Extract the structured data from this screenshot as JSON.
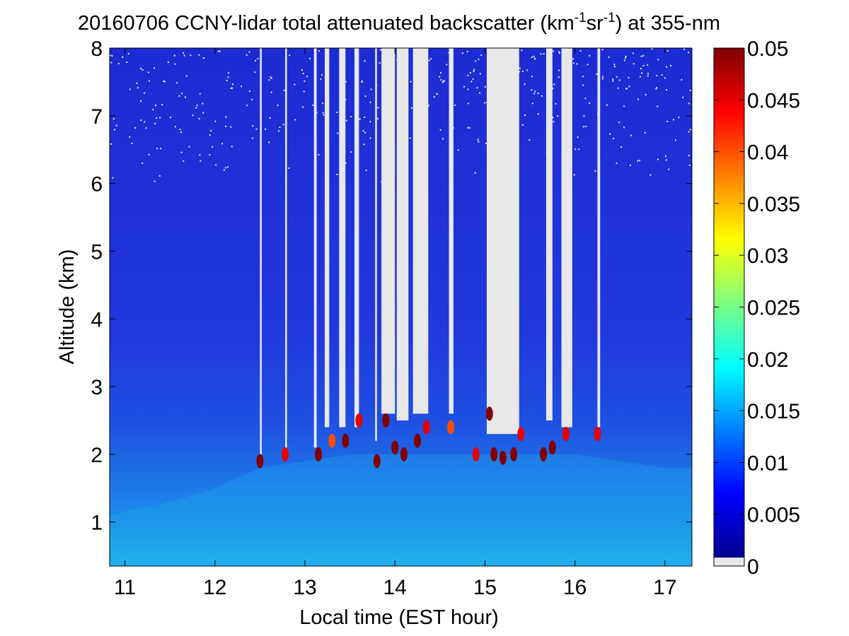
{
  "chart_data": {
    "type": "heatmap",
    "title_parts": {
      "prefix": "20160706 CCNY-lidar total attenuated backscatter (km",
      "exp1": "-1",
      "mid": "sr",
      "exp2": "-1",
      "suffix": ") at 355-nm"
    },
    "xlabel": "Local time (EST hour)",
    "ylabel": "Altitude (km)",
    "xlim": [
      10.83,
      17.3
    ],
    "ylim": [
      0.35,
      8
    ],
    "x_ticks": [
      11,
      12,
      13,
      14,
      15,
      16,
      17
    ],
    "y_ticks": [
      1,
      2,
      3,
      4,
      5,
      6,
      7,
      8
    ],
    "colorbar": {
      "min": 0,
      "max": 0.05,
      "ticks": [
        "0",
        "0.005",
        "0.01",
        "0.015",
        "0.02",
        "0.025",
        "0.03",
        "0.035",
        "0.04",
        "0.045",
        "0.05"
      ],
      "colormap": "jet",
      "nodata_color": "#e8e8e8"
    },
    "colors": {
      "background_low": "#2232d8",
      "nodata": "#e8e8e8"
    },
    "boundary_layer_top_km": {
      "x": [
        10.83,
        11.5,
        12.0,
        12.5,
        13.0,
        13.5,
        14.0,
        14.5,
        15.0,
        15.5,
        16.0,
        16.5,
        17.0,
        17.3
      ],
      "y": [
        1.1,
        1.3,
        1.5,
        1.8,
        1.9,
        2.0,
        2.0,
        2.0,
        2.0,
        2.0,
        2.0,
        1.9,
        1.8,
        1.8
      ]
    },
    "no_data_regions": [
      {
        "x": [
          12.5,
          12.52
        ],
        "y_bottom": 2.0
      },
      {
        "x": [
          12.78,
          12.8
        ],
        "y_bottom": 2.0
      },
      {
        "x": [
          13.1,
          13.13
        ],
        "y_bottom": 2.1
      },
      {
        "x": [
          13.22,
          13.27
        ],
        "y_bottom": 2.4
      },
      {
        "x": [
          13.38,
          13.45
        ],
        "y_bottom": 2.4
      },
      {
        "x": [
          13.55,
          13.6
        ],
        "y_bottom": 2.4
      },
      {
        "x": [
          13.78,
          13.8
        ],
        "y_bottom": 2.2
      },
      {
        "x": [
          13.85,
          14.0
        ],
        "y_bottom": 2.6
      },
      {
        "x": [
          14.02,
          14.15
        ],
        "y_bottom": 2.5
      },
      {
        "x": [
          14.2,
          14.37
        ],
        "y_bottom": 2.6
      },
      {
        "x": [
          14.6,
          14.65
        ],
        "y_bottom": 2.6
      },
      {
        "x": [
          15.02,
          15.38
        ],
        "y_bottom": 2.3
      },
      {
        "x": [
          15.68,
          15.75
        ],
        "y_bottom": 2.5
      },
      {
        "x": [
          15.85,
          15.97
        ],
        "y_bottom": 2.4
      },
      {
        "x": [
          16.25,
          16.28
        ],
        "y_bottom": 2.4
      }
    ],
    "cloud_base_features": [
      {
        "x": 12.5,
        "y": 1.9,
        "value": 0.05
      },
      {
        "x": 12.78,
        "y": 2.0,
        "value": 0.045
      },
      {
        "x": 13.15,
        "y": 2.0,
        "value": 0.05
      },
      {
        "x": 13.3,
        "y": 2.2,
        "value": 0.04
      },
      {
        "x": 13.45,
        "y": 2.2,
        "value": 0.05
      },
      {
        "x": 13.6,
        "y": 2.5,
        "value": 0.045
      },
      {
        "x": 13.8,
        "y": 1.9,
        "value": 0.05
      },
      {
        "x": 13.9,
        "y": 2.5,
        "value": 0.05
      },
      {
        "x": 14.0,
        "y": 2.1,
        "value": 0.05
      },
      {
        "x": 14.1,
        "y": 2.0,
        "value": 0.05
      },
      {
        "x": 14.25,
        "y": 2.2,
        "value": 0.05
      },
      {
        "x": 14.35,
        "y": 2.4,
        "value": 0.045
      },
      {
        "x": 14.62,
        "y": 2.4,
        "value": 0.04
      },
      {
        "x": 14.9,
        "y": 2.0,
        "value": 0.045
      },
      {
        "x": 15.05,
        "y": 2.6,
        "value": 0.05
      },
      {
        "x": 15.1,
        "y": 2.0,
        "value": 0.05
      },
      {
        "x": 15.2,
        "y": 1.95,
        "value": 0.05
      },
      {
        "x": 15.32,
        "y": 2.0,
        "value": 0.05
      },
      {
        "x": 15.4,
        "y": 2.3,
        "value": 0.045
      },
      {
        "x": 15.65,
        "y": 2.0,
        "value": 0.05
      },
      {
        "x": 15.75,
        "y": 2.1,
        "value": 0.05
      },
      {
        "x": 15.9,
        "y": 2.3,
        "value": 0.045
      },
      {
        "x": 16.25,
        "y": 2.3,
        "value": 0.045
      }
    ]
  }
}
